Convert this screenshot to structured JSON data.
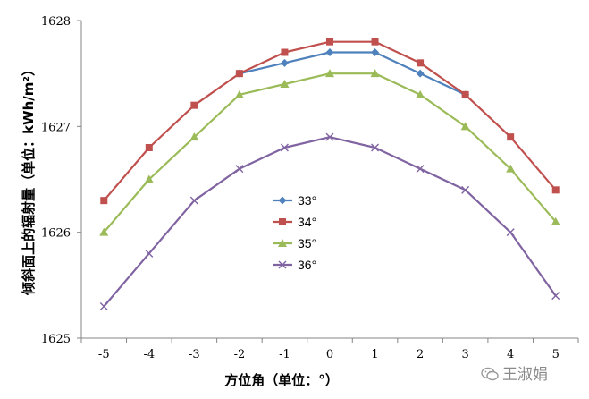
{
  "chart_data": {
    "type": "line",
    "title": "",
    "xlabel": "方位角（单位：°）",
    "ylabel": "倾斜面上的辐射量（单位：kWh/m²）",
    "x": [
      -5,
      -4,
      -3,
      -2,
      -1,
      0,
      1,
      2,
      3,
      4,
      5
    ],
    "xlim": [
      -5,
      5
    ],
    "ylim": [
      1625,
      1628
    ],
    "yticks": [
      1625,
      1626,
      1627,
      1628
    ],
    "grid": false,
    "legend_position": "center",
    "series": [
      {
        "name": "33°",
        "color": "#4f81bd",
        "marker": "diamond",
        "x": [
          -2,
          -1,
          0,
          1,
          2,
          3
        ],
        "values": [
          1627.5,
          1627.6,
          1627.7,
          1627.7,
          1627.5,
          1627.3
        ]
      },
      {
        "name": "34°",
        "color": "#c0504d",
        "marker": "square",
        "x": [
          -5,
          -4,
          -3,
          -2,
          -1,
          0,
          1,
          2,
          3,
          4,
          5
        ],
        "values": [
          1626.3,
          1626.8,
          1627.2,
          1627.5,
          1627.7,
          1627.8,
          1627.8,
          1627.6,
          1627.3,
          1626.9,
          1626.4
        ]
      },
      {
        "name": "35°",
        "color": "#9bbb59",
        "marker": "triangle",
        "x": [
          -5,
          -4,
          -3,
          -2,
          -1,
          0,
          1,
          2,
          3,
          4,
          5
        ],
        "values": [
          1626.0,
          1626.5,
          1626.9,
          1627.3,
          1627.4,
          1627.5,
          1627.5,
          1627.3,
          1627.0,
          1626.6,
          1626.1
        ]
      },
      {
        "name": "36°",
        "color": "#8064a2",
        "marker": "x",
        "x": [
          -5,
          -4,
          -3,
          -2,
          -1,
          0,
          1,
          2,
          3,
          4,
          5
        ],
        "values": [
          1625.3,
          1625.8,
          1626.3,
          1626.6,
          1626.8,
          1626.9,
          1626.8,
          1626.6,
          1626.4,
          1626.0,
          1625.4
        ]
      }
    ]
  },
  "watermark": {
    "text": "王淑娟",
    "icon": "wechat-icon"
  }
}
